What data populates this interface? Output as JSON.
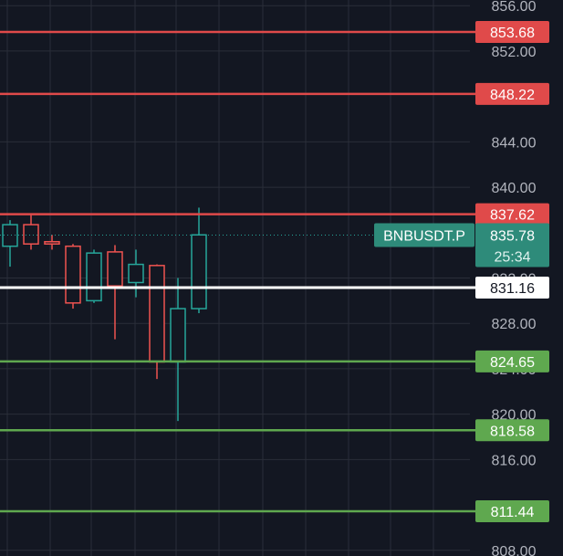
{
  "symbol": "BNBUSDT.P",
  "current_price_label": "835.78",
  "countdown": "25:34",
  "colors": {
    "background": "#131722",
    "grid": "#2a2e39",
    "axis_text": "#b2b5be",
    "resistance": "#e04a4a",
    "support": "#5fa84f",
    "pivot": "#ffffff",
    "bull": "#26a69a",
    "bear": "#ef5350",
    "price_badge": "#2e8b7a"
  },
  "chart_data": {
    "type": "candlestick",
    "ylim": [
      807.5,
      856.5
    ],
    "y_ticks": [
      {
        "value": 856,
        "label": "856.00"
      },
      {
        "value": 852,
        "label": "852.00"
      },
      {
        "value": 844,
        "label": "844.00"
      },
      {
        "value": 840,
        "label": "840.00"
      },
      {
        "value": 832,
        "label": "832.00"
      },
      {
        "value": 828,
        "label": "828.00"
      },
      {
        "value": 824,
        "label": "824.00"
      },
      {
        "value": 820,
        "label": "820.00"
      },
      {
        "value": 816,
        "label": "816.00"
      },
      {
        "value": 808,
        "label": "808.00"
      }
    ],
    "candles": [
      {
        "o": 834.8,
        "h": 837.1,
        "l": 833.0,
        "c": 836.7
      },
      {
        "o": 836.7,
        "h": 837.6,
        "l": 834.5,
        "c": 835.0
      },
      {
        "o": 835.2,
        "h": 835.8,
        "l": 834.5,
        "c": 835.0
      },
      {
        "o": 834.8,
        "h": 835.0,
        "l": 829.3,
        "c": 829.8
      },
      {
        "o": 830.0,
        "h": 834.5,
        "l": 829.8,
        "c": 834.2
      },
      {
        "o": 834.3,
        "h": 834.9,
        "l": 826.6,
        "c": 831.3
      },
      {
        "o": 831.6,
        "h": 834.5,
        "l": 830.3,
        "c": 833.2
      },
      {
        "o": 833.1,
        "h": 833.2,
        "l": 823.1,
        "c": 824.6
      },
      {
        "o": 824.6,
        "h": 832.0,
        "l": 819.4,
        "c": 829.3
      },
      {
        "o": 829.3,
        "h": 838.2,
        "l": 828.9,
        "c": 835.8
      }
    ],
    "levels": [
      {
        "value": 853.68,
        "label": "853.68",
        "kind": "resistance"
      },
      {
        "value": 848.22,
        "label": "848.22",
        "kind": "resistance"
      },
      {
        "value": 837.62,
        "label": "837.62",
        "kind": "resistance"
      },
      {
        "value": 831.16,
        "label": "831.16",
        "kind": "pivot"
      },
      {
        "value": 824.65,
        "label": "824.65",
        "kind": "support"
      },
      {
        "value": 818.58,
        "label": "818.58",
        "kind": "support"
      },
      {
        "value": 811.44,
        "label": "811.44",
        "kind": "support"
      }
    ],
    "current_price": 835.78
  }
}
